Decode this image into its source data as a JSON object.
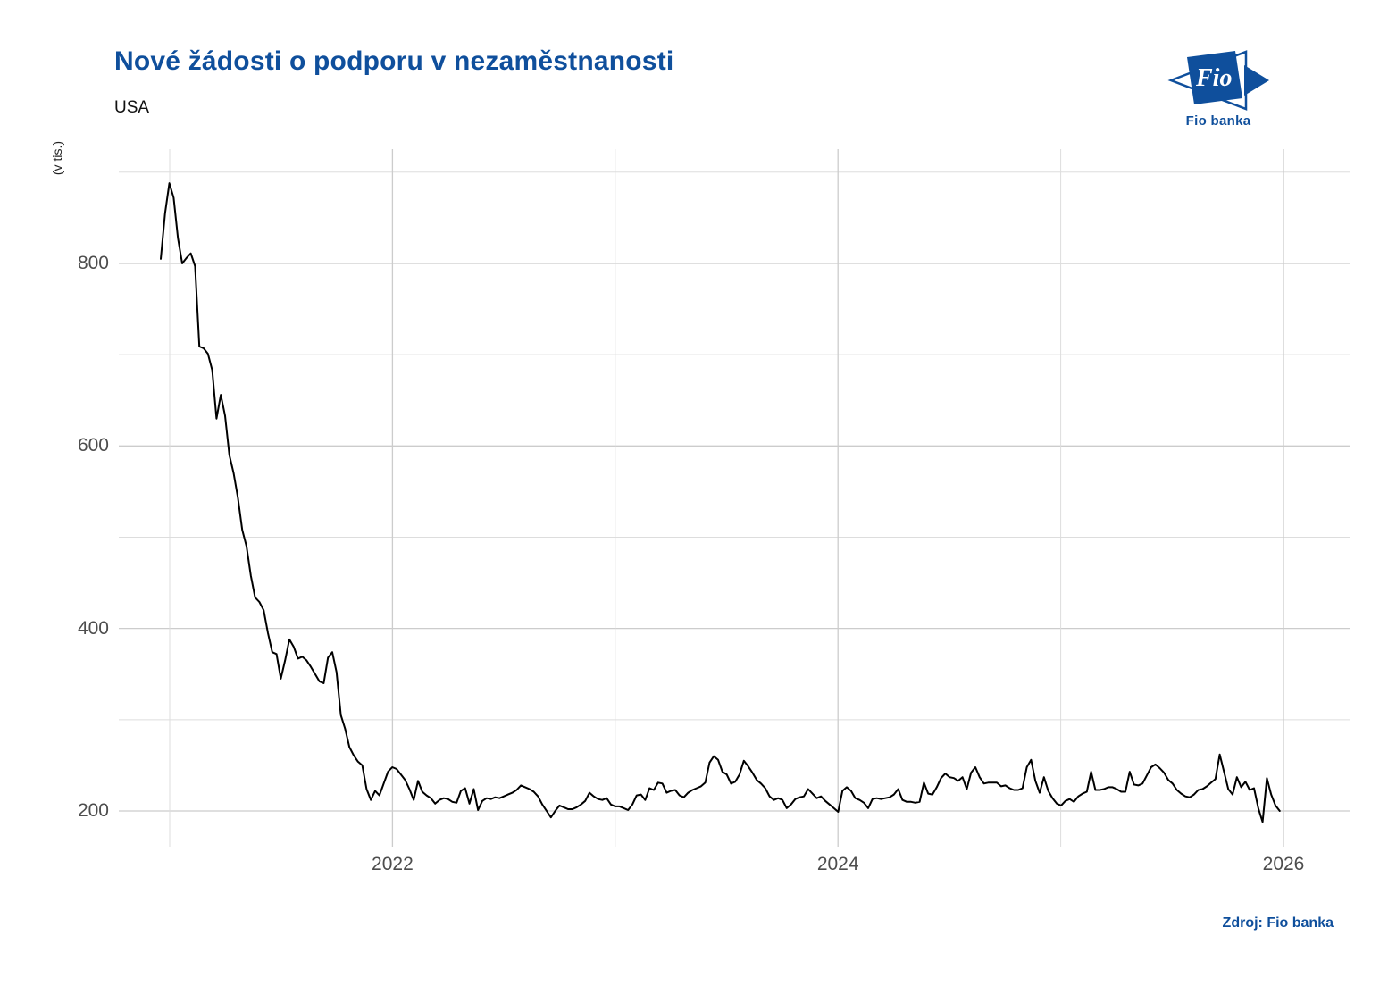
{
  "header": {
    "title": "Nové žádosti o podporu v nezaměstnanosti",
    "subtitle": "USA"
  },
  "logo": {
    "text": "Fio",
    "caption": "Fio banka"
  },
  "source": {
    "label": "Zdroj: Fio banka"
  },
  "colors": {
    "accent_blue": "#0f4f9c",
    "line": "#000000",
    "grid_major": "#cccccc",
    "grid_minor": "#dddddd",
    "tick_text": "#4d4d4d"
  },
  "chart_data": {
    "type": "line",
    "title": "Nové žádosti o podporu v nezaměstnanosti",
    "subtitle": "USA",
    "ylabel": "(v tis.)",
    "unit": "tis.",
    "frequency": "weekly",
    "x_start_year": 2021.0,
    "x_end_year": 2026.0,
    "x_tick_years": [
      2022,
      2024,
      2026
    ],
    "x_tick_labels": [
      "2022",
      "2024",
      "2026"
    ],
    "x_minor_years": [
      2021,
      2023,
      2025
    ],
    "y_ticks": [
      200,
      400,
      600,
      800
    ],
    "y_minor_ticks": [
      300,
      500,
      700,
      900
    ],
    "ylim": [
      150,
      930
    ],
    "grid": true,
    "legend": false,
    "series": [
      {
        "name": "USA",
        "values": [
          805,
          855,
          888,
          872,
          828,
          800,
          806,
          811,
          797,
          709,
          707,
          701,
          683,
          630,
          656,
          633,
          590,
          570,
          543,
          508,
          490,
          458,
          434,
          429,
          420,
          395,
          374,
          372,
          345,
          365,
          388,
          380,
          367,
          369,
          365,
          358,
          350,
          342,
          340,
          368,
          374,
          352,
          305,
          290,
          270,
          261,
          254,
          250,
          224,
          212,
          222,
          217,
          230,
          243,
          248,
          246,
          240,
          234,
          224,
          212,
          233,
          221,
          217,
          214,
          208,
          212,
          214,
          213,
          210,
          209,
          222,
          225,
          208,
          224,
          201,
          211,
          214,
          213,
          215,
          214,
          216,
          218,
          220,
          223,
          228,
          226,
          224,
          221,
          216,
          207,
          200,
          193,
          200,
          206,
          204,
          202,
          202,
          204,
          207,
          211,
          220,
          216,
          213,
          212,
          214,
          207,
          205,
          205,
          203,
          201,
          207,
          217,
          218,
          212,
          225,
          223,
          231,
          230,
          220,
          222,
          223,
          217,
          215,
          220,
          223,
          225,
          227,
          231,
          253,
          260,
          256,
          243,
          240,
          230,
          232,
          240,
          255,
          249,
          242,
          234,
          230,
          225,
          216,
          212,
          214,
          212,
          203,
          207,
          213,
          215,
          216,
          224,
          219,
          214,
          216,
          211,
          207,
          203,
          199,
          222,
          226,
          222,
          214,
          212,
          209,
          203,
          213,
          214,
          213,
          214,
          215,
          218,
          224,
          212,
          210,
          210,
          209,
          210,
          231,
          219,
          218,
          226,
          236,
          241,
          237,
          236,
          233,
          237,
          224,
          242,
          248,
          237,
          230,
          231,
          231,
          231,
          227,
          228,
          225,
          223,
          223,
          225,
          248,
          256,
          233,
          220,
          237,
          222,
          214,
          208,
          206,
          211,
          213,
          210,
          216,
          219,
          221,
          243,
          223,
          223,
          224,
          226,
          226,
          224,
          221,
          221,
          243,
          229,
          228,
          230,
          239,
          248,
          251,
          247,
          242,
          234,
          230,
          223,
          219,
          216,
          215,
          218,
          223,
          224,
          227,
          231,
          235,
          262,
          243,
          224,
          218,
          237,
          226,
          232,
          223,
          225,
          203,
          188,
          236,
          218,
          206,
          200
        ]
      }
    ]
  }
}
